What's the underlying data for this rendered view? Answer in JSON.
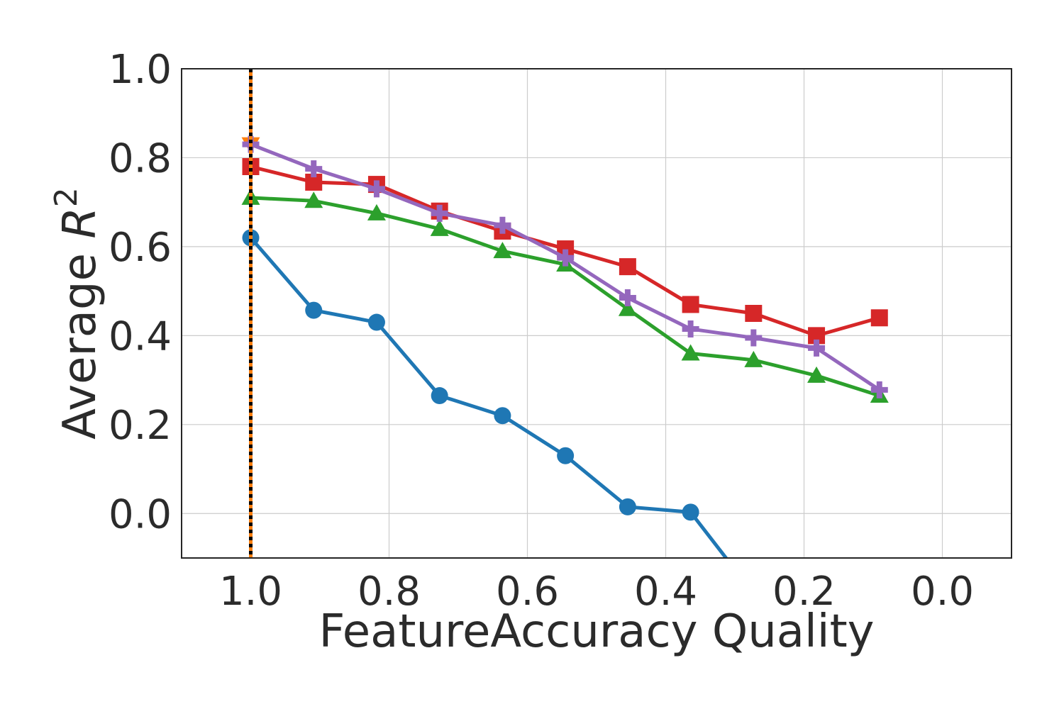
{
  "chart_data": {
    "type": "line",
    "xlabel": "FeatureAccuracy Quality",
    "ylabel": "Average ",
    "ylabel_math": "R",
    "ylabel_sup": "2",
    "xlim": [
      1.1,
      -0.1
    ],
    "ylim": [
      -0.1,
      1.0
    ],
    "x_ticks": [
      1.0,
      0.8,
      0.6,
      0.4,
      0.2,
      0.0
    ],
    "x_tick_labels": [
      "1.0",
      "0.8",
      "0.6",
      "0.4",
      "0.2",
      "0.0"
    ],
    "y_ticks": [
      0.0,
      0.2,
      0.4,
      0.6,
      0.8,
      1.0
    ],
    "y_tick_labels": [
      "0.0",
      "0.2",
      "0.4",
      "0.6",
      "0.8",
      "1.0"
    ],
    "grid": true,
    "x": [
      1.0,
      0.909,
      0.818,
      0.727,
      0.636,
      0.545,
      0.455,
      0.364,
      0.273,
      0.182,
      0.091
    ],
    "series": [
      {
        "color": "#1f77b4",
        "marker": "circle",
        "values": [
          0.62,
          0.457,
          0.43,
          0.265,
          0.22,
          0.13,
          0.015,
          0.003,
          -0.18,
          null,
          null
        ]
      },
      {
        "color": "#d62728",
        "marker": "square",
        "values": [
          0.78,
          0.745,
          0.74,
          0.68,
          0.635,
          0.595,
          0.555,
          0.47,
          0.45,
          0.4,
          0.44
        ]
      },
      {
        "color": "#2ca02c",
        "marker": "triangle",
        "values": [
          0.71,
          0.703,
          0.675,
          0.64,
          0.59,
          0.56,
          0.46,
          0.36,
          0.345,
          0.31,
          0.265
        ]
      },
      {
        "color": "#9467bd",
        "marker": "plus",
        "values": [
          0.83,
          0.775,
          0.73,
          0.675,
          0.648,
          0.575,
          0.485,
          0.415,
          0.395,
          0.372,
          0.278
        ]
      },
      {
        "color": "#ff7f0e",
        "marker": "triangle-down",
        "values": [
          0.83,
          null,
          null,
          null,
          null,
          null,
          null,
          null,
          null,
          null,
          null
        ]
      }
    ],
    "reference_lines": [
      {
        "orientation": "vertical",
        "x": 1.0,
        "color": "#ff7f0e",
        "style": "solid"
      },
      {
        "orientation": "vertical",
        "x": 1.0,
        "color": "#000000",
        "style": "dotted"
      }
    ]
  }
}
